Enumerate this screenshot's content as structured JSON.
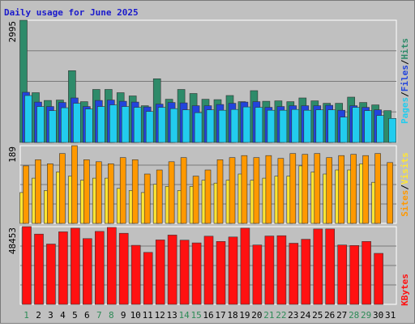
{
  "chart_data": [
    {
      "type": "bar",
      "title": "Daily usage for June 2025",
      "ymax_label": "2995",
      "ylim": [
        0,
        2995
      ],
      "categories": [
        "1",
        "2",
        "3",
        "4",
        "5",
        "6",
        "7",
        "8",
        "9",
        "10",
        "11",
        "12",
        "13",
        "14",
        "15",
        "16",
        "17",
        "18",
        "19",
        "20",
        "21",
        "22",
        "23",
        "24",
        "25",
        "26",
        "27",
        "28",
        "29",
        "30",
        "31"
      ],
      "weekend_days": [
        "1",
        "7",
        "8",
        "14",
        "15",
        "21",
        "22",
        "28",
        "29"
      ],
      "series": [
        {
          "name": "Hits",
          "color": "#2e8b6a",
          "values": [
            2995,
            1220,
            1030,
            1040,
            1760,
            1000,
            1300,
            1300,
            1220,
            1140,
            900,
            1560,
            1060,
            1300,
            1200,
            1060,
            1050,
            1150,
            1000,
            1270,
            1010,
            1020,
            1000,
            1090,
            1020,
            960,
            960,
            1110,
            980,
            920,
            780
          ]
        },
        {
          "name": "Files",
          "color": "#2244dd",
          "values": [
            1230,
            990,
            880,
            980,
            1090,
            880,
            1030,
            1040,
            1010,
            990,
            870,
            940,
            980,
            970,
            900,
            900,
            930,
            960,
            990,
            1000,
            860,
            880,
            900,
            900,
            900,
            910,
            790,
            900,
            860,
            800,
            0
          ]
        },
        {
          "name": "Pages",
          "color": "#22ccee",
          "values": [
            1150,
            880,
            780,
            850,
            960,
            820,
            880,
            920,
            880,
            860,
            760,
            860,
            830,
            800,
            730,
            800,
            790,
            810,
            870,
            860,
            790,
            790,
            810,
            790,
            800,
            800,
            620,
            860,
            780,
            660,
            590
          ]
        }
      ]
    },
    {
      "type": "bar",
      "ymax_label": "189",
      "ylim": [
        0,
        189
      ],
      "categories": [
        "1",
        "2",
        "3",
        "4",
        "5",
        "6",
        "7",
        "8",
        "9",
        "10",
        "11",
        "12",
        "13",
        "14",
        "15",
        "16",
        "17",
        "18",
        "19",
        "20",
        "21",
        "22",
        "23",
        "24",
        "25",
        "26",
        "27",
        "28",
        "29",
        "30",
        "31"
      ],
      "series": [
        {
          "name": "Visits",
          "color": "#ffe633",
          "values": [
            75,
            110,
            80,
            125,
            115,
            105,
            110,
            110,
            85,
            80,
            75,
            95,
            90,
            80,
            90,
            105,
            98,
            105,
            120,
            105,
            110,
            115,
            115,
            140,
            125,
            120,
            130,
            130,
            145,
            100,
            0
          ]
        },
        {
          "name": "Sites",
          "color": "#ff9900",
          "values": [
            140,
            155,
            145,
            170,
            189,
            155,
            150,
            145,
            160,
            155,
            120,
            130,
            150,
            160,
            115,
            130,
            155,
            160,
            165,
            160,
            165,
            158,
            170,
            168,
            170,
            160,
            165,
            168,
            165,
            170,
            148
          ]
        }
      ]
    },
    {
      "type": "bar",
      "ymax_label": "48453",
      "ylim": [
        0,
        48453
      ],
      "categories": [
        "1",
        "2",
        "3",
        "4",
        "5",
        "6",
        "7",
        "8",
        "9",
        "10",
        "11",
        "12",
        "13",
        "14",
        "15",
        "16",
        "17",
        "18",
        "19",
        "20",
        "21",
        "22",
        "23",
        "24",
        "25",
        "26",
        "27",
        "28",
        "29",
        "30",
        "31"
      ],
      "series": [
        {
          "name": "KBytes",
          "color": "#ff1111",
          "values": [
            48453,
            43800,
            37600,
            45200,
            47500,
            41000,
            45500,
            48000,
            44300,
            36800,
            32400,
            40200,
            43200,
            40000,
            38300,
            42500,
            39200,
            42000,
            47500,
            37000,
            42600,
            42800,
            38100,
            40600,
            47000,
            47000,
            37000,
            36700,
            39200,
            31800,
            0
          ]
        }
      ]
    }
  ]
}
